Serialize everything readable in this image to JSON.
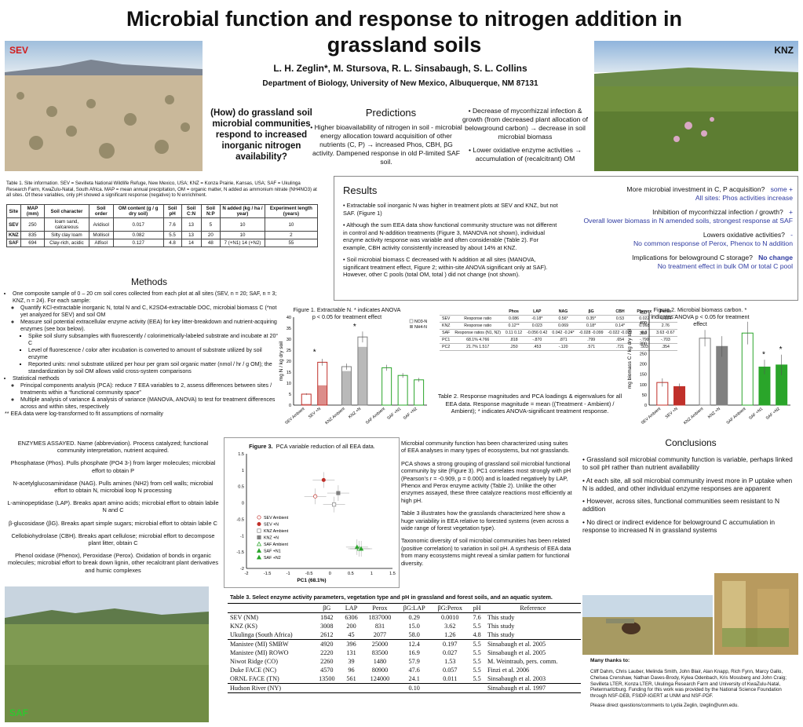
{
  "title": "Microbial function and response to nitrogen addition in grassland soils",
  "authors": "L. H. Zeglin*, M. Stursova, R. L. Sinsabaugh, S. L. Collins",
  "department": "Department of Biology, University of New Mexico, Albuquerque, NM  87131",
  "photos": {
    "sev": "SEV",
    "knz": "KNZ",
    "saf": "SAF"
  },
  "question": "(How) do grassland soil microbial communities respond to increased inorganic nitrogen availability?",
  "predictions": {
    "heading": "Predictions",
    "p1": "• Higher bioavailability of nitrogen in soil - microbial energy allocation toward acquisition of other nutrients (C, P) → increased Phos, CBH, βG activity.  Dampened response in old P-limited SAF soil.",
    "p2": "• Decrease of mycorrhizzal infection & growth (from decreased plant allocation of belowground carbon) → decrease in soil microbial biomass",
    "p3": "• Lower oxidative enzyme activities → accumulation of (recalcitrant) OM"
  },
  "table1": {
    "caption": "Table 1.  Site information.  SEV = Sevilleta National Wildlife Refuge, New Mexico, USA; KNZ = Konza Prairie, Kansas, USA; SAF = Ukulinga Research Farm, KwaZulu-Natal, South Africa.  MAP = mean annual precipitation, OM = organic matter, N added as ammonium nitrate (NH4NO3) at all sites.  Of these variables, only pH showed a significant response (negative) to N enrichment.",
    "headers": [
      "Site",
      "MAP (mm)",
      "Soil character",
      "Soil order",
      "OM content (g / g dry soil)",
      "Soil pH",
      "Soil C:N",
      "Soil N:P",
      "N added (kg / ha / year)",
      "Experiment length (years)"
    ],
    "rows": [
      [
        "SEV",
        "250",
        "loam sand, calcareous",
        "Aridisol",
        "0.017",
        "7.6",
        "13",
        "5",
        "10",
        "10"
      ],
      [
        "KNZ",
        "835",
        "Silty clay loam",
        "Mollisol",
        "0.082",
        "5.5",
        "13",
        "20",
        "10",
        "2"
      ],
      [
        "SAF",
        "694",
        "Clay-rich, acidic",
        "Alfisol",
        "0.127",
        "4.8",
        "14",
        "48",
        "7 (+N1) 14 (+N2)",
        "55"
      ]
    ]
  },
  "methods": {
    "heading": "Methods",
    "b1": "One composite sample of 0 – 20 cm soil cores collected from each plot at all sites (SEV, n = 20; SAF, n = 3; KNZ, n = 24).  For each sample:",
    "b1a": "Quantify KCl-extractable inorganic N, total N and C, K2SO4-extractable DOC, microbial biomass C (*not yet analyzed for SEV) and soil OM",
    "b1b": "Measure soil potential extracellular enzyme activity (EEA) for key litter-breakdown and nutrient-acquiring enzymes (see box below).",
    "b1b1": "Spike soil slurry subsamples with fluorescently / colorimetrically-labeled substrate and incubate at 20° C",
    "b1b2": "Level of fluorescence / color after incubation is converted to amount of substrate utilized by soil enzyme",
    "b1b3": "Reported units: nmol substrate utilized per hour per gram soil organic matter (nmol / hr / g OM); the standardization by soil OM allows valid cross-system comparisons",
    "b2": "Statistical methods",
    "b2a": "Principal components analysis (PCA): reduce 7 EEA variables to 2, assess differences between sites / treatments within a “functional community space”",
    "b2b": "Multiple analysis of variance & analysis of variance (MANOVA, ANOVA) to test for treatment differences across and within sites, respectively",
    "note": "**  EEA data were log-transformed to fit assumptions of normality"
  },
  "enzymes": {
    "e1": "ENZYMES ASSAYED.  Name (abbreviation).  Process catalyzed; functional community interpretation, nutrient acquired.",
    "e2": "Phosphatase (Phos).  Pulls phosphate (PO4 3-) from larger molecules; microbial effort to obtain P",
    "e3": "N-acetylglucosaminidase (NAG).  Pulls amines (NH2) from cell walls; microbial effort to obtain N, microbial loop N processing",
    "e4": "L-aminopeptidase (LAP).  Breaks apart amino acids; microbial effort to obtain labile N and C",
    "e5": "β-glucosidase (βG).  Breaks apart simple sugars; microbial effort to obtain labile C",
    "e6": "Cellobiohydrolase (CBH).  Breaks apart cellulose; microbial effort to decompose plant litter, obtain C",
    "e7": "Phenol oxidase (Phenox), Peroxidase (Perox).  Oxidation of bonds in organic molecules; microbial effort to break down lignin, other recalcitrant plant derivatives and humic complexes"
  },
  "results": {
    "heading": "Results",
    "r1": "• Extractable soil inorganic N was higher in treatment plots at SEV and KNZ, but not SAF. (Figure 1)",
    "r2": "• Although the sum EEA data show functional community structure was not different in control and N-addition treatments (Figure 3, MANOVA not shown), individual enzyme activity response was variable and often considerable (Table 2).  For example, CBH activity consistently increased by about 14% at KNZ.",
    "r3": "•  Soil microbial biomass C decreased with N addition at all sites (MANOVA, significant treatment effect, Figure 2; within-site ANOVA significant only at SAF).  However, other C pools (total OM, total ) did not change (not shown).",
    "imp": [
      {
        "q": "More microbial investment in C, P acquisition?",
        "a": "some +",
        "b": "All sites: Phos activities increase"
      },
      {
        "q": "Inhibition of mycorrhizzal infection / growth?",
        "a": "+",
        "b": "Overall lower biomass in N amended soils, strongest response at SAF"
      },
      {
        "q": "Lowers oxidative activities?",
        "a": "-",
        "b": "No common response of Perox, Phenox to N addition"
      },
      {
        "q": "Implications for belowground C storage?",
        "a": "No change",
        "b": "No treatment effect in bulk OM or total C pool"
      }
    ]
  },
  "fig1": {
    "caption": "Figure 1. Extractable N. * indicates ANOVA p < 0.05 for treatment effect"
  },
  "fig2": {
    "caption": "Figure 2. Microbial biomass carbon.  * indicates ANOVA p < 0.05 for treatment effect"
  },
  "chart_data": [
    {
      "type": "bar",
      "ylabel": "mg N / kg dry soil",
      "ylim": [
        0,
        40
      ],
      "categories": [
        "SEV Ambient",
        "SEV +N",
        "KNZ Ambient",
        "KNZ +N",
        "SAF Ambient",
        "SAF +N1",
        "SAF +N2"
      ],
      "series": [
        {
          "name": "NO3-N",
          "values": [
            5,
            19.5,
            17.5,
            31,
            17,
            13.5,
            11.5
          ]
        },
        {
          "name": "NH4-N",
          "values": [
            0.5,
            9,
            15.5,
            26.5,
            0,
            0,
            0
          ]
        }
      ],
      "significance": [
        "",
        "*",
        "",
        "*",
        "",
        "",
        ""
      ],
      "colors": [
        "#c0302a",
        "#c0302a",
        "#808080",
        "#808080",
        "#2aa52a",
        "#2aa52a",
        "#2aa52a"
      ]
    },
    {
      "type": "bar",
      "ylabel": "mg biomass C / kg dry soil",
      "ylim": [
        0,
        450
      ],
      "categories": [
        "SEV Ambient",
        "SEV +N",
        "KNZ Ambient",
        "KNZ +N",
        "SAF Ambient",
        "SAF +N1",
        "SAF +N2"
      ],
      "values": [
        110,
        90,
        325,
        285,
        350,
        185,
        195
      ],
      "errors": [
        20,
        15,
        40,
        50,
        55,
        35,
        50
      ],
      "significance": [
        "",
        "",
        "",
        "",
        "",
        "*",
        "*"
      ],
      "filled": [
        false,
        true,
        false,
        true,
        false,
        true,
        true
      ],
      "colors": [
        "#c0302a",
        "#c0302a",
        "#808080",
        "#808080",
        "#2aa52a",
        "#2aa52a",
        "#2aa52a"
      ]
    },
    {
      "type": "scatter",
      "title": "Figure 3.  PCA variable reduction of all EEA data.",
      "xlabel": "PC1  (68.1%)",
      "xlim": [
        -2,
        1.5
      ],
      "ylim": [
        -2,
        1.5
      ],
      "series": [
        {
          "name": "SEV  Ambient",
          "x": -0.35,
          "y": 0.2
        },
        {
          "name": "SEV  +N",
          "x": -0.15,
          "y": 0.7
        },
        {
          "name": "KNZ  Ambient",
          "x": 0.1,
          "y": -0.05
        },
        {
          "name": "KNZ  +N",
          "x": 0.2,
          "y": 0.3
        },
        {
          "name": "SAF  Ambient",
          "x": 0.7,
          "y": -1.4
        },
        {
          "name": "SAF  +N1",
          "x": 0.65,
          "y": -1.35
        },
        {
          "name": "SAF  +N2",
          "x": 0.75,
          "y": -1.4
        }
      ]
    }
  ],
  "table2": {
    "caption": "Table 2.  Response magnitudes and PCA loadings & eigenvalues for all EEA data.  Response magnitude  = mean ((Treatment - Ambient) / Ambient); * indicates ANOVA-significant treatment response.",
    "headers": [
      "",
      "",
      "Phos",
      "LAP",
      "NAG",
      "βG",
      "CBH",
      "Phenox",
      "Perox"
    ],
    "rows": [
      [
        "SEV",
        "Response ratio",
        "0.086",
        "-0.18*",
        "0.56*",
        "0.35*",
        "0.53",
        "0.022",
        "-0.024"
      ],
      [
        "KNZ",
        "Response ratio",
        "0.12**",
        "0.023",
        "0.069",
        "0.18*",
        "0.14*",
        "0.068",
        "2.76"
      ],
      [
        "SAF",
        "Response ratios (N1, N2)",
        "0.11 0.12",
        "-0.056 0.42",
        "0.042 -0.24*",
        "-0.028 -0.099",
        "-0.022 -0.022",
        "0 0",
        "3.63 -0.67"
      ],
      [
        "PC1",
        "68.1% 4.766",
        ".818",
        "-.870",
        ".871",
        ".799",
        ".654",
        "-.790",
        "-.703"
      ],
      [
        "PC2",
        "21.7% 1.517",
        ".250",
        ".453",
        "-.120",
        ".571",
        ".721",
        ".503",
        ".354"
      ]
    ]
  },
  "fig3": {
    "title": "Figure 3.",
    "caption": "PCA variable reduction of all EEA data.",
    "xlabel": "PC1  (68.1%)",
    "xticks": [
      "-2",
      "-1.5",
      "-1",
      "-0.5",
      "0",
      "0.5",
      "1",
      "1.5"
    ],
    "yticks": [
      "1.5",
      "1",
      "0.5",
      "0",
      "-0.5",
      "-1",
      "-1.5",
      "-2"
    ]
  },
  "fig3text": {
    "p1": "Microbial community function has been characterized using suites of EEA analyses in many types of ecosystems, but not grasslands.",
    "p2": "PCA shows a strong grouping of grassland soil microbial functional community by site (Figure 3). PC1 correlates most strongly with pH (Pearson’s r = -0.909, p = 0.000) and is loaded negatively by LAP, Phenox and Perox enzyme activity (Table 2).  Unlike the other enzymes assayed, these three catalyze reactions most efficiently at high pH.",
    "p3": "Table 3 illustrates how the grasslands characterized here show a huge variability in EEA relative to forested systems (even across a wide range of forest vegetation type).",
    "p4": "Taxonomic diversity of soil microbial communities has been related (positive correlation) to variation in soil pH.  A synthesis of EEA data from many ecosystems might reveal a similar pattern for functional diversity."
  },
  "table3": {
    "caption": "Table 3.  Select enzyme activity parameters, vegetation type and pH in grassland and forest soils, and an aquatic system.",
    "headers": [
      "",
      "βG",
      "LAP",
      "Perox",
      "βG:LAP",
      "βG:Perox",
      "pH",
      "Reference"
    ],
    "rows": [
      [
        "SEV (NM)",
        "1842",
        "6306",
        "1837000",
        "0.29",
        "0.0010",
        "7.6",
        "This study"
      ],
      [
        "KNZ (KS)",
        "3008",
        "200",
        "831",
        "15.0",
        "3.62",
        "5.5",
        "This study"
      ],
      [
        "Ukulinga  (South Africa)",
        "2612",
        "45",
        "2077",
        "58.0",
        "1.26",
        "4.8",
        "This study"
      ],
      [
        "Manistee (MI) SMBW",
        "4920",
        "396",
        "25000",
        "12.4",
        "0.197",
        "5.5",
        "Sinsabaugh et al. 2005"
      ],
      [
        "Manistee (MI) ROWO",
        "2220",
        "131",
        "83500",
        "16.9",
        "0.027",
        "5.5",
        "Sinsabaugh et al. 2005"
      ],
      [
        "Niwot Ridge (CO)",
        "2260",
        "39",
        "1480",
        "57.9",
        "1.53",
        "5.5",
        "M. Weintraub, pers. comm."
      ],
      [
        "Duke FACE (NC)",
        "4570",
        "96",
        "80900",
        "47.6",
        "0.057",
        "5.5",
        "Finzi et al. 2006"
      ],
      [
        "ORNL FACE (TN)",
        "13500",
        "561",
        "124000",
        "24.1",
        "0.011",
        "5.5",
        "Sinsabaugh et al. 2003"
      ],
      [
        "Hudson River (NY)",
        "",
        "",
        "",
        "0.10",
        "",
        "",
        "Sinsabaugh et al. 1997"
      ]
    ]
  },
  "conclusions": {
    "heading": "Conclusions",
    "c1": "•   Grassland soil microbial community function is variable, perhaps linked to soil pH rather than nutrient availability",
    "c2": "•   At each site, all soil microbial community invest more in P uptake when N is added, and other individual enzyme responses are apparent",
    "c3": "•   However, across sites, functional communities seem resistant to N addition",
    "c4": "•   No direct or indirect evidence for belowground C accumulation in response to increased N in grassland systems"
  },
  "thanks": {
    "heading": "Many thanks to:",
    "t1": "Cliff Dahm, Chris Lauber, Melinda Smith, John Blair, Alan Knapp, Rich Fynn, Marcy Gallo, Chelsea Crenshaw, Nathan Daves-Brody, Kylea Odenbach, Kris Mossberg and John Craig; Sevilleta LTER, Konza LTER, Ukulinga Research Farm and University of KwaZulu-Natal, Pietermaritzburg.  Funding for this work was provided by the National Science Foundation through NSF-DEB, FSIDP-IGERT at UNM and NSF-PDF.",
    "t2": "Please direct questions/comments to Lydia Zeglin, lzeglin@unm.edu."
  }
}
